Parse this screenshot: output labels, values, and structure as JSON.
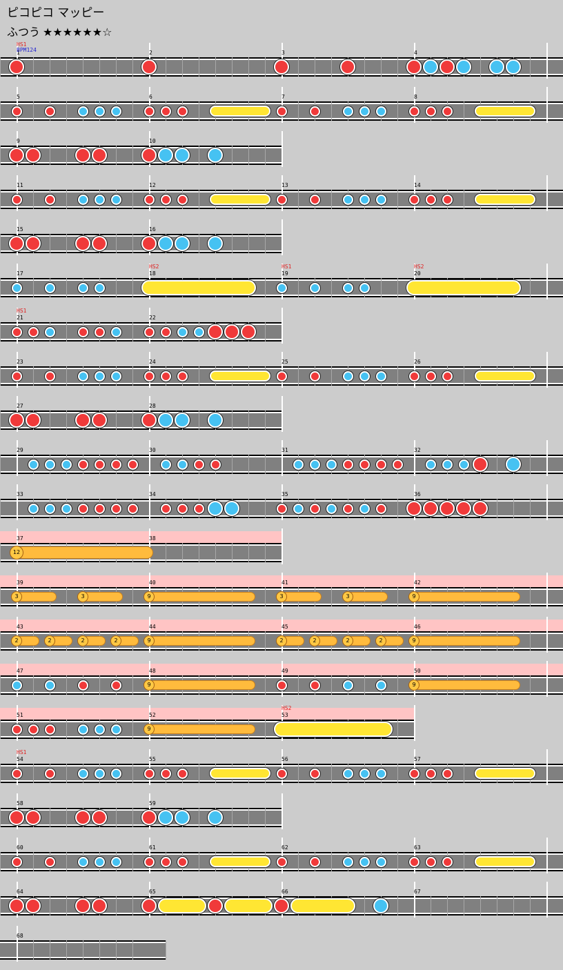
{
  "header": {
    "title": "ピコピコ マッピー",
    "difficulty": "ふつう",
    "stars": "★★★★★★☆"
  },
  "colors": {
    "don": "#f03a3a",
    "ka": "#46c2f2",
    "roll": "#ffe633",
    "balloon": "#ffbb3d",
    "balloon_bg": "#ffc4c4"
  },
  "rows": [
    {
      "measures": [
        1,
        2,
        3,
        4
      ],
      "labels": [
        {
          "m": 0,
          "hs": "HS1",
          "bpm": "BPM124"
        }
      ],
      "notes": [
        [
          0,
          "D",
          1
        ],
        [
          1,
          "D",
          1
        ],
        [
          2,
          "D",
          1
        ],
        [
          2.5,
          "D",
          1
        ],
        [
          3,
          "D",
          1
        ],
        [
          3.125,
          "K",
          1
        ],
        [
          3.25,
          "D",
          1
        ],
        [
          3.375,
          "K",
          1
        ],
        [
          3.625,
          "K",
          1
        ],
        [
          3.75,
          "K",
          1
        ]
      ]
    },
    {
      "measures": [
        5,
        6,
        7,
        8
      ],
      "notes": [
        [
          0,
          "D",
          0
        ],
        [
          0.25,
          "D",
          0
        ],
        [
          0.5,
          "K",
          0
        ],
        [
          0.625,
          "K",
          0
        ],
        [
          0.75,
          "K",
          0
        ],
        [
          1,
          "D",
          0
        ],
        [
          1.125,
          "D",
          0
        ],
        [
          1.25,
          "D",
          0
        ],
        [
          2,
          "D",
          0
        ],
        [
          2.25,
          "D",
          0
        ],
        [
          2.5,
          "K",
          0
        ],
        [
          2.625,
          "K",
          0
        ],
        [
          2.75,
          "K",
          0
        ],
        [
          3,
          "D",
          0
        ],
        [
          3.125,
          "D",
          0
        ],
        [
          3.25,
          "D",
          0
        ]
      ],
      "rolls": [
        [
          1.5,
          1.875,
          0
        ],
        [
          3.5,
          3.875,
          0
        ]
      ]
    },
    {
      "measures": [
        9,
        10
      ],
      "notes": [
        [
          0,
          "D",
          1
        ],
        [
          0.125,
          "D",
          1
        ],
        [
          0.5,
          "D",
          1
        ],
        [
          0.625,
          "D",
          1
        ],
        [
          1,
          "D",
          1
        ],
        [
          1.125,
          "K",
          1
        ],
        [
          1.25,
          "K",
          1
        ],
        [
          1.5,
          "K",
          1
        ]
      ]
    },
    {
      "measures": [
        11,
        12,
        13,
        14
      ],
      "notes": [
        [
          0,
          "D",
          0
        ],
        [
          0.25,
          "D",
          0
        ],
        [
          0.5,
          "K",
          0
        ],
        [
          0.625,
          "K",
          0
        ],
        [
          0.75,
          "K",
          0
        ],
        [
          1,
          "D",
          0
        ],
        [
          1.125,
          "D",
          0
        ],
        [
          1.25,
          "D",
          0
        ],
        [
          2,
          "D",
          0
        ],
        [
          2.25,
          "D",
          0
        ],
        [
          2.5,
          "K",
          0
        ],
        [
          2.625,
          "K",
          0
        ],
        [
          2.75,
          "K",
          0
        ],
        [
          3,
          "D",
          0
        ],
        [
          3.125,
          "D",
          0
        ],
        [
          3.25,
          "D",
          0
        ]
      ],
      "rolls": [
        [
          1.5,
          1.875,
          0
        ],
        [
          3.5,
          3.875,
          0
        ]
      ]
    },
    {
      "measures": [
        15,
        16
      ],
      "notes": [
        [
          0,
          "D",
          1
        ],
        [
          0.125,
          "D",
          1
        ],
        [
          0.5,
          "D",
          1
        ],
        [
          0.625,
          "D",
          1
        ],
        [
          1,
          "D",
          1
        ],
        [
          1.125,
          "K",
          1
        ],
        [
          1.25,
          "K",
          1
        ],
        [
          1.5,
          "K",
          1
        ]
      ]
    },
    {
      "measures": [
        17,
        18,
        19,
        20
      ],
      "labels": [
        {
          "m": 1,
          "hs": "HS2"
        },
        {
          "m": 2,
          "hs": "HS1"
        },
        {
          "m": 3,
          "hs": "HS2"
        }
      ],
      "notes": [
        [
          0,
          "K",
          0
        ],
        [
          0.25,
          "K",
          0
        ],
        [
          0.5,
          "K",
          0
        ],
        [
          0.625,
          "K",
          0
        ],
        [
          2,
          "K",
          0
        ],
        [
          2.25,
          "K",
          0
        ],
        [
          2.5,
          "K",
          0
        ],
        [
          2.625,
          "K",
          0
        ]
      ],
      "rolls": [
        [
          1,
          1.75,
          1
        ],
        [
          3,
          3.75,
          1
        ]
      ]
    },
    {
      "measures": [
        21,
        22
      ],
      "labels": [
        {
          "m": 0,
          "hs": "HS1"
        }
      ],
      "notes": [
        [
          0,
          "D",
          0
        ],
        [
          0.125,
          "D",
          0
        ],
        [
          0.25,
          "K",
          0
        ],
        [
          0.5,
          "D",
          0
        ],
        [
          0.625,
          "D",
          0
        ],
        [
          0.75,
          "K",
          0
        ],
        [
          1,
          "D",
          0
        ],
        [
          1.125,
          "D",
          0
        ],
        [
          1.25,
          "K",
          0
        ],
        [
          1.375,
          "K",
          0
        ],
        [
          1.5,
          "D",
          1
        ],
        [
          1.625,
          "D",
          1
        ],
        [
          1.75,
          "D",
          1
        ]
      ]
    },
    {
      "measures": [
        23,
        24,
        25,
        26
      ],
      "notes": [
        [
          0,
          "D",
          0
        ],
        [
          0.25,
          "D",
          0
        ],
        [
          0.5,
          "K",
          0
        ],
        [
          0.625,
          "K",
          0
        ],
        [
          0.75,
          "K",
          0
        ],
        [
          1,
          "D",
          0
        ],
        [
          1.125,
          "D",
          0
        ],
        [
          1.25,
          "D",
          0
        ],
        [
          2,
          "D",
          0
        ],
        [
          2.25,
          "D",
          0
        ],
        [
          2.5,
          "K",
          0
        ],
        [
          2.625,
          "K",
          0
        ],
        [
          2.75,
          "K",
          0
        ],
        [
          3,
          "D",
          0
        ],
        [
          3.125,
          "D",
          0
        ],
        [
          3.25,
          "D",
          0
        ]
      ],
      "rolls": [
        [
          1.5,
          1.875,
          0
        ],
        [
          3.5,
          3.875,
          0
        ]
      ]
    },
    {
      "measures": [
        27,
        28
      ],
      "notes": [
        [
          0,
          "D",
          1
        ],
        [
          0.125,
          "D",
          1
        ],
        [
          0.5,
          "D",
          1
        ],
        [
          0.625,
          "D",
          1
        ],
        [
          1,
          "D",
          1
        ],
        [
          1.125,
          "K",
          1
        ],
        [
          1.25,
          "K",
          1
        ],
        [
          1.5,
          "K",
          1
        ]
      ]
    },
    {
      "measures": [
        29,
        30,
        31,
        32
      ],
      "notes": [
        [
          0.125,
          "K",
          0
        ],
        [
          0.25,
          "K",
          0
        ],
        [
          0.375,
          "K",
          0
        ],
        [
          0.5,
          "D",
          0
        ],
        [
          0.625,
          "D",
          0
        ],
        [
          0.75,
          "D",
          0
        ],
        [
          0.875,
          "D",
          0
        ],
        [
          1.125,
          "K",
          0
        ],
        [
          1.25,
          "K",
          0
        ],
        [
          1.375,
          "D",
          0
        ],
        [
          1.5,
          "D",
          0
        ],
        [
          2.125,
          "K",
          0
        ],
        [
          2.25,
          "K",
          0
        ],
        [
          2.375,
          "K",
          0
        ],
        [
          2.5,
          "D",
          0
        ],
        [
          2.625,
          "D",
          0
        ],
        [
          2.75,
          "D",
          0
        ],
        [
          2.875,
          "D",
          0
        ],
        [
          3.125,
          "K",
          0
        ],
        [
          3.25,
          "K",
          0
        ],
        [
          3.375,
          "K",
          0
        ],
        [
          3.5,
          "D",
          1
        ],
        [
          3.75,
          "K",
          1
        ]
      ]
    },
    {
      "measures": [
        33,
        34,
        35,
        36
      ],
      "notes": [
        [
          0.125,
          "K",
          0
        ],
        [
          0.25,
          "K",
          0
        ],
        [
          0.375,
          "K",
          0
        ],
        [
          0.5,
          "D",
          0
        ],
        [
          0.625,
          "D",
          0
        ],
        [
          0.75,
          "D",
          0
        ],
        [
          0.875,
          "D",
          0
        ],
        [
          1.125,
          "D",
          0
        ],
        [
          1.25,
          "D",
          0
        ],
        [
          1.375,
          "D",
          0
        ],
        [
          1.5,
          "K",
          1
        ],
        [
          1.625,
          "K",
          1
        ],
        [
          2,
          "D",
          0
        ],
        [
          2.125,
          "K",
          0
        ],
        [
          2.25,
          "D",
          0
        ],
        [
          2.375,
          "K",
          0
        ],
        [
          2.5,
          "D",
          0
        ],
        [
          2.625,
          "K",
          0
        ],
        [
          2.75,
          "D",
          0
        ],
        [
          3,
          "D",
          1
        ],
        [
          3.125,
          "D",
          1
        ],
        [
          3.25,
          "D",
          1
        ],
        [
          3.375,
          "D",
          1
        ],
        [
          3.5,
          "D",
          1
        ]
      ]
    },
    {
      "measures": [
        37,
        38
      ],
      "balloon_bg": 2,
      "balloons": [
        [
          0,
          1.03,
          "12",
          1
        ]
      ]
    },
    {
      "measures": [
        39,
        40,
        41,
        42
      ],
      "balloon_bg": 4,
      "balloons": [
        [
          0,
          0.3,
          "3",
          0
        ],
        [
          0.5,
          0.8,
          "3",
          0
        ],
        [
          1,
          1.8,
          "9",
          0
        ],
        [
          2,
          2.3,
          "3",
          0
        ],
        [
          2.5,
          2.8,
          "3",
          0
        ],
        [
          3,
          3.8,
          "9",
          0
        ]
      ]
    },
    {
      "measures": [
        43,
        44,
        45,
        46
      ],
      "balloon_bg": 4,
      "balloons": [
        [
          0,
          0.17,
          "2",
          0
        ],
        [
          0.25,
          0.42,
          "2",
          0
        ],
        [
          0.5,
          0.67,
          "2",
          0
        ],
        [
          0.75,
          0.92,
          "2",
          0
        ],
        [
          1,
          1.8,
          "9",
          0
        ],
        [
          2,
          2.17,
          "2",
          0
        ],
        [
          2.25,
          2.42,
          "2",
          0
        ],
        [
          2.5,
          2.67,
          "2",
          0
        ],
        [
          2.75,
          2.92,
          "2",
          0
        ],
        [
          3,
          3.8,
          "9",
          0
        ]
      ]
    },
    {
      "measures": [
        47,
        48,
        49,
        50
      ],
      "balloon_bg": 4,
      "notes": [
        [
          0,
          "K",
          0
        ],
        [
          0.25,
          "K",
          0
        ],
        [
          0.5,
          "D",
          0
        ],
        [
          0.75,
          "D",
          0
        ],
        [
          2,
          "D",
          0
        ],
        [
          2.25,
          "D",
          0
        ],
        [
          2.5,
          "K",
          0
        ],
        [
          2.75,
          "K",
          0
        ]
      ],
      "balloons": [
        [
          1,
          1.8,
          "9",
          0
        ],
        [
          3,
          3.8,
          "9",
          0
        ]
      ]
    },
    {
      "measures": [
        51,
        52,
        53
      ],
      "balloon_bg": 3,
      "labels": [
        {
          "m": 2,
          "hs": "HS2"
        }
      ],
      "notes": [
        [
          0,
          "D",
          0
        ],
        [
          0.125,
          "D",
          0
        ],
        [
          0.25,
          "D",
          0
        ],
        [
          0.5,
          "K",
          0
        ],
        [
          0.625,
          "K",
          0
        ],
        [
          0.75,
          "K",
          0
        ]
      ],
      "balloons": [
        [
          1,
          1.8,
          "9",
          0
        ]
      ],
      "rolls": [
        [
          2,
          2.78,
          1
        ]
      ]
    },
    {
      "measures": [
        54,
        55,
        56,
        57
      ],
      "labels": [
        {
          "m": 0,
          "hs": "HS1"
        }
      ],
      "notes": [
        [
          0,
          "D",
          0
        ],
        [
          0.25,
          "D",
          0
        ],
        [
          0.5,
          "K",
          0
        ],
        [
          0.625,
          "K",
          0
        ],
        [
          0.75,
          "K",
          0
        ],
        [
          1,
          "D",
          0
        ],
        [
          1.125,
          "D",
          0
        ],
        [
          1.25,
          "D",
          0
        ],
        [
          2,
          "D",
          0
        ],
        [
          2.25,
          "D",
          0
        ],
        [
          2.5,
          "K",
          0
        ],
        [
          2.625,
          "K",
          0
        ],
        [
          2.75,
          "K",
          0
        ],
        [
          3,
          "D",
          0
        ],
        [
          3.125,
          "D",
          0
        ],
        [
          3.25,
          "D",
          0
        ]
      ],
      "rolls": [
        [
          1.5,
          1.875,
          0
        ],
        [
          3.5,
          3.875,
          0
        ]
      ]
    },
    {
      "measures": [
        58,
        59
      ],
      "notes": [
        [
          0,
          "D",
          1
        ],
        [
          0.125,
          "D",
          1
        ],
        [
          0.5,
          "D",
          1
        ],
        [
          0.625,
          "D",
          1
        ],
        [
          1,
          "D",
          1
        ],
        [
          1.125,
          "K",
          1
        ],
        [
          1.25,
          "K",
          1
        ],
        [
          1.5,
          "K",
          1
        ]
      ]
    },
    {
      "measures": [
        60,
        61,
        62,
        63
      ],
      "notes": [
        [
          0,
          "D",
          0
        ],
        [
          0.25,
          "D",
          0
        ],
        [
          0.5,
          "K",
          0
        ],
        [
          0.625,
          "K",
          0
        ],
        [
          0.75,
          "K",
          0
        ],
        [
          1,
          "D",
          0
        ],
        [
          1.125,
          "D",
          0
        ],
        [
          1.25,
          "D",
          0
        ],
        [
          2,
          "D",
          0
        ],
        [
          2.25,
          "D",
          0
        ],
        [
          2.5,
          "K",
          0
        ],
        [
          2.625,
          "K",
          0
        ],
        [
          2.75,
          "K",
          0
        ],
        [
          3,
          "D",
          0
        ],
        [
          3.125,
          "D",
          0
        ],
        [
          3.25,
          "D",
          0
        ]
      ],
      "rolls": [
        [
          1.5,
          1.875,
          0
        ],
        [
          3.5,
          3.875,
          0
        ]
      ]
    },
    {
      "measures": [
        64,
        65,
        66,
        67
      ],
      "notes": [
        [
          0,
          "D",
          1
        ],
        [
          0.125,
          "D",
          1
        ],
        [
          0.5,
          "D",
          1
        ],
        [
          0.625,
          "D",
          1
        ],
        [
          1,
          "D",
          1
        ],
        [
          1.5,
          "D",
          1
        ],
        [
          2,
          "D",
          1
        ],
        [
          2.75,
          "K",
          1
        ]
      ],
      "rolls": [
        [
          1.125,
          1.375,
          1
        ],
        [
          1.625,
          1.875,
          1
        ],
        [
          2.125,
          2.5,
          1
        ]
      ]
    },
    {
      "measures": [
        68
      ],
      "quarter": true
    }
  ]
}
